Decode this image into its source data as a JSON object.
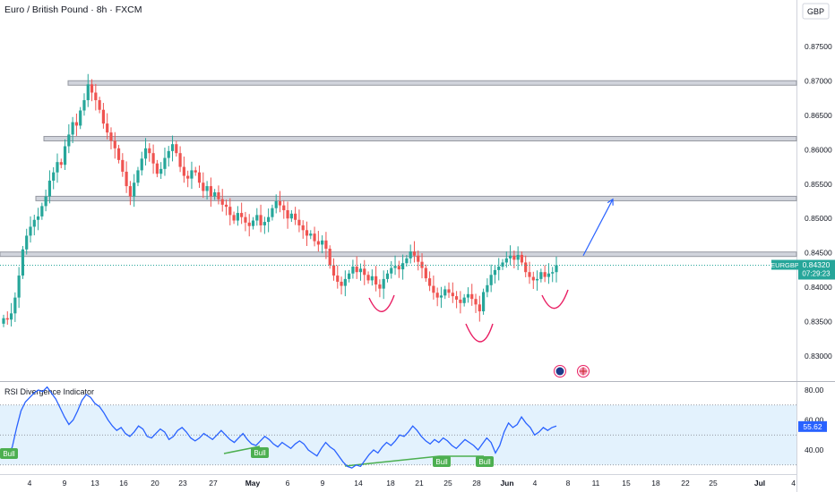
{
  "header": {
    "title": "Euro / British Pound · 8h · FXCM",
    "currency": "GBP"
  },
  "price_axis": {
    "ticks": [
      "0.87500",
      "0.87000",
      "0.86500",
      "0.86000",
      "0.85500",
      "0.85000",
      "0.84500",
      "0.84000",
      "0.83500",
      "0.83000"
    ]
  },
  "price_tag": {
    "symbol": "EURGBP",
    "price": "0.84320",
    "countdown": "07:29:23"
  },
  "indicator": {
    "title": "RSI Divergence Indicator",
    "ticks": [
      "80.00",
      "60.00",
      "40.00"
    ],
    "value": "55.62",
    "bull_label": "Bull"
  },
  "time_axis": {
    "labels": [
      "4",
      "9",
      "13",
      "16",
      "20",
      "23",
      "27",
      "May",
      "6",
      "9",
      "14",
      "18",
      "21",
      "25",
      "28",
      "Jun",
      "4",
      "8",
      "11",
      "15",
      "18",
      "22",
      "25",
      "Jul",
      "4"
    ]
  },
  "colors": {
    "up": "#26a69a",
    "down": "#ef5350",
    "rsi": "#2962ff",
    "band": "#e3f2fd",
    "bull": "#4caf50",
    "arrow": "#2962ff",
    "pattern": "#e91e63"
  },
  "chart_data": {
    "type": "candlestick",
    "title": "Euro / British Pound · 8h · FXCM",
    "ylim": [
      0.8265,
      0.8785
    ],
    "current_price": 0.8432,
    "resistance_levels": [
      0.8697,
      0.8616,
      0.8529,
      0.8448
    ],
    "projection": {
      "from": 0.8446,
      "to": 0.8528
    },
    "closes": [
      0.8355,
      0.8353,
      0.8362,
      0.8385,
      0.8417,
      0.8455,
      0.8475,
      0.8488,
      0.8498,
      0.8503,
      0.8518,
      0.8532,
      0.8555,
      0.8567,
      0.8582,
      0.8578,
      0.8605,
      0.8622,
      0.864,
      0.8635,
      0.8657,
      0.8672,
      0.8695,
      0.8683,
      0.8672,
      0.8658,
      0.8638,
      0.8625,
      0.8613,
      0.8602,
      0.8585,
      0.8568,
      0.8547,
      0.8532,
      0.8552,
      0.857,
      0.8587,
      0.8602,
      0.8595,
      0.858,
      0.8565,
      0.8572,
      0.8588,
      0.8598,
      0.8608,
      0.8595,
      0.8575,
      0.8562,
      0.8558,
      0.857,
      0.8567,
      0.8552,
      0.854,
      0.8547,
      0.8532,
      0.8538,
      0.8528,
      0.852,
      0.8517,
      0.8505,
      0.8497,
      0.8508,
      0.8502,
      0.8494,
      0.8489,
      0.8497,
      0.8505,
      0.849,
      0.8495,
      0.8502,
      0.8515,
      0.8525,
      0.8519,
      0.8512,
      0.85,
      0.8507,
      0.8498,
      0.849,
      0.8483,
      0.8475,
      0.8478,
      0.8467,
      0.8462,
      0.8468,
      0.8456,
      0.8432,
      0.8417,
      0.8408,
      0.8402,
      0.8412,
      0.842,
      0.843,
      0.8422,
      0.8427,
      0.8418,
      0.841,
      0.8416,
      0.8404,
      0.8398,
      0.8412,
      0.842,
      0.8428,
      0.8431,
      0.8426,
      0.8435,
      0.8442,
      0.8452,
      0.8446,
      0.8437,
      0.8428,
      0.8413,
      0.8402,
      0.8392,
      0.8385,
      0.8388,
      0.8397,
      0.8392,
      0.8387,
      0.8382,
      0.8377,
      0.8385,
      0.839,
      0.8383,
      0.8375,
      0.8365,
      0.8393,
      0.8403,
      0.8418,
      0.8425,
      0.843,
      0.8436,
      0.8442,
      0.8446,
      0.844,
      0.8447,
      0.8436,
      0.8422,
      0.8415,
      0.841,
      0.8412,
      0.8422,
      0.8415,
      0.842,
      0.8422,
      0.8432
    ],
    "rsi": {
      "ylim": [
        22,
        86
      ],
      "levels": [
        70,
        50,
        30
      ],
      "values": [
        40,
        36,
        42,
        55,
        66,
        72,
        75,
        78,
        80,
        79,
        82,
        78,
        74,
        68,
        62,
        57,
        60,
        66,
        73,
        77,
        75,
        71,
        69,
        65,
        60,
        56,
        53,
        55,
        51,
        49,
        52,
        56,
        54,
        49,
        48,
        51,
        54,
        52,
        47,
        49,
        53,
        55,
        52,
        48,
        46,
        48,
        51,
        49,
        47,
        50,
        53,
        50,
        47,
        45,
        48,
        51,
        47,
        44,
        43,
        46,
        49,
        47,
        44,
        42,
        45,
        43,
        41,
        44,
        46,
        44,
        40,
        38,
        36,
        41,
        45,
        42,
        40,
        36,
        32,
        29,
        28,
        30,
        29,
        33,
        37,
        40,
        38,
        42,
        45,
        43,
        46,
        50,
        49,
        52,
        56,
        53,
        49,
        46,
        44,
        47,
        45,
        48,
        46,
        43,
        41,
        44,
        47,
        45,
        43,
        40,
        44,
        48,
        45,
        38,
        43,
        52,
        58,
        55,
        57,
        62,
        58,
        55,
        50,
        52,
        55,
        53,
        55,
        56
      ]
    },
    "bull_signals": [
      0,
      40,
      74,
      84
    ],
    "time_labels": [
      "4",
      "9",
      "13",
      "16",
      "20",
      "23",
      "27",
      "May",
      "6",
      "9",
      "14",
      "18",
      "21",
      "25",
      "28",
      "Jun",
      "4",
      "8",
      "11",
      "15",
      "18",
      "22",
      "25",
      "Jul",
      "4"
    ]
  }
}
